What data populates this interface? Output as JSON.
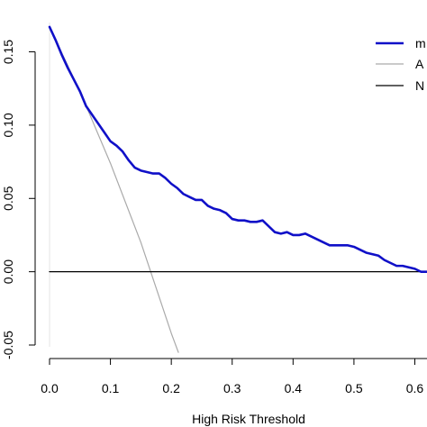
{
  "chart_data": {
    "type": "line",
    "xlabel": "High Risk Threshold",
    "ylabel": "",
    "xlim": [
      0,
      0.62
    ],
    "ylim": [
      -0.05,
      0.17
    ],
    "x_ticks": [
      0.0,
      0.1,
      0.2,
      0.3,
      0.4,
      0.5,
      0.6
    ],
    "x_tick_labels": [
      "0.0",
      "0.1",
      "0.2",
      "0.3",
      "0.4",
      "0.5",
      "0.6"
    ],
    "y_ticks": [
      -0.05,
      0.0,
      0.05,
      0.1,
      0.15
    ],
    "y_tick_labels": [
      "-0.05",
      "0.00",
      "0.05",
      "0.10",
      "0.15"
    ],
    "grid": false,
    "legend_position": "top-right",
    "legend": [
      "m",
      "A",
      "N"
    ],
    "series": [
      {
        "name": "m",
        "color": "#1010c8",
        "x": [
          0.0,
          0.01,
          0.02,
          0.03,
          0.04,
          0.05,
          0.06,
          0.07,
          0.08,
          0.09,
          0.1,
          0.11,
          0.12,
          0.13,
          0.14,
          0.15,
          0.16,
          0.17,
          0.18,
          0.19,
          0.2,
          0.21,
          0.22,
          0.23,
          0.24,
          0.25,
          0.26,
          0.27,
          0.28,
          0.29,
          0.3,
          0.31,
          0.32,
          0.33,
          0.34,
          0.35,
          0.36,
          0.37,
          0.38,
          0.39,
          0.4,
          0.41,
          0.42,
          0.43,
          0.44,
          0.45,
          0.46,
          0.47,
          0.48,
          0.49,
          0.5,
          0.51,
          0.52,
          0.53,
          0.54,
          0.55,
          0.56,
          0.57,
          0.58,
          0.59,
          0.6,
          0.61,
          0.62
        ],
        "values": [
          0.167,
          0.158,
          0.148,
          0.139,
          0.131,
          0.123,
          0.113,
          0.107,
          0.101,
          0.095,
          0.089,
          0.086,
          0.082,
          0.076,
          0.071,
          0.069,
          0.068,
          0.067,
          0.067,
          0.064,
          0.06,
          0.057,
          0.053,
          0.051,
          0.049,
          0.049,
          0.045,
          0.043,
          0.042,
          0.04,
          0.036,
          0.035,
          0.035,
          0.034,
          0.034,
          0.035,
          0.031,
          0.027,
          0.026,
          0.027,
          0.025,
          0.025,
          0.026,
          0.024,
          0.022,
          0.02,
          0.018,
          0.018,
          0.018,
          0.018,
          0.017,
          0.015,
          0.013,
          0.012,
          0.011,
          0.008,
          0.006,
          0.004,
          0.004,
          0.003,
          0.002,
          0.0,
          0.0
        ]
      },
      {
        "name": "A",
        "color": "#aaaaaa",
        "x": [
          0.0,
          0.05,
          0.1,
          0.15,
          0.2,
          0.2116
        ],
        "values": [
          0.167,
          0.123,
          0.074,
          0.02,
          -0.042,
          -0.055
        ]
      },
      {
        "name": "N",
        "color": "#000000",
        "x": [
          0.0,
          0.62
        ],
        "values": [
          0.0,
          0.0
        ]
      }
    ]
  }
}
